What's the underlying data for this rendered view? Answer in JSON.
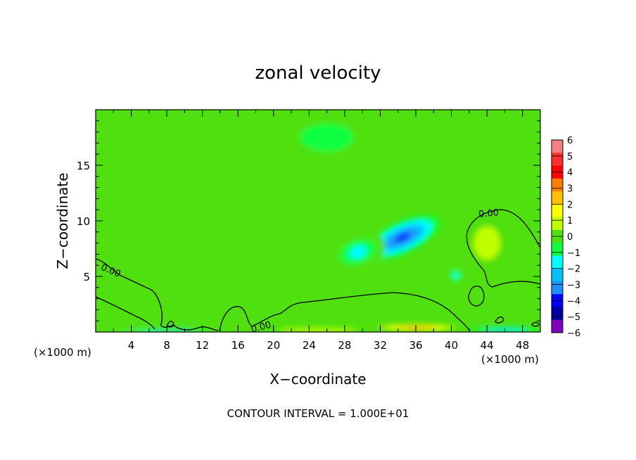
{
  "chart_data": {
    "type": "heatmap",
    "title": "zonal velocity",
    "xlabel": "X−coordinate",
    "ylabel": "Z−coordinate",
    "x_unit_left": "(×1000 m)",
    "x_unit_right": "(×1000 m)",
    "footer": "CONTOUR INTERVAL = 1.000E+01",
    "xlim": [
      0,
      50
    ],
    "ylim": [
      0,
      20
    ],
    "x_ticks": [
      "4",
      "8",
      "12",
      "16",
      "20",
      "24",
      "28",
      "32",
      "36",
      "40",
      "44",
      "48"
    ],
    "x_tick_values": [
      4,
      8,
      12,
      16,
      20,
      24,
      28,
      32,
      36,
      40,
      44,
      48
    ],
    "y_ticks": [
      "5",
      "10",
      "15"
    ],
    "y_tick_values": [
      5,
      10,
      15
    ],
    "colorbar_labels": [
      "6",
      "5",
      "4",
      "3",
      "2",
      "1",
      "0",
      "−1",
      "−2",
      "−3",
      "−4",
      "−5",
      "−6"
    ],
    "colorbar_values": [
      6,
      5,
      4,
      3,
      2,
      1,
      0,
      -1,
      -2,
      -3,
      -4,
      -5,
      -6
    ],
    "colorbar_colors": [
      "#f28080",
      "#ff3030",
      "#ff0000",
      "#ff8000",
      "#ffc000",
      "#ffff00",
      "#c0ff00",
      "#50e010",
      "#10ff40",
      "#00ffff",
      "#00c0ff",
      "#2090ff",
      "#0000ff",
      "#0000a0",
      "#8000c0"
    ],
    "contour_labels": [
      "0.00",
      "0.00",
      "0.00"
    ],
    "features": [
      {
        "x": 34.5,
        "z": 8.5,
        "value": -4.2,
        "sx": 4.5,
        "sz": 1.4,
        "rot": 25
      },
      {
        "x": 29.5,
        "z": 7.2,
        "value": -1.6,
        "sx": 3.2,
        "sz": 1.6,
        "rot": 20
      },
      {
        "x": 40.5,
        "z": 5.1,
        "value": -1.5,
        "sx": 1.0,
        "sz": 0.7,
        "rot": 0
      },
      {
        "x": 36,
        "z": 0.4,
        "value": 3.5,
        "sx": 5.5,
        "sz": 0.35,
        "rot": 0
      },
      {
        "x": 8,
        "z": 0.1,
        "value": -2.6,
        "sx": 7,
        "sz": 0.2,
        "rot": 0
      },
      {
        "x": 46,
        "z": 0.2,
        "value": -2.3,
        "sx": 4,
        "sz": 0.25,
        "rot": 0
      },
      {
        "x": 25,
        "z": 0.15,
        "value": 1.2,
        "sx": 9,
        "sz": 0.35,
        "rot": 0
      },
      {
        "x": 26,
        "z": 17.5,
        "value": -0.7,
        "sx": 6,
        "sz": 2.5,
        "rot": 0
      },
      {
        "x": 44,
        "z": 8.0,
        "value": 0.6,
        "sx": 3,
        "sz": 3,
        "rot": 0
      }
    ]
  }
}
